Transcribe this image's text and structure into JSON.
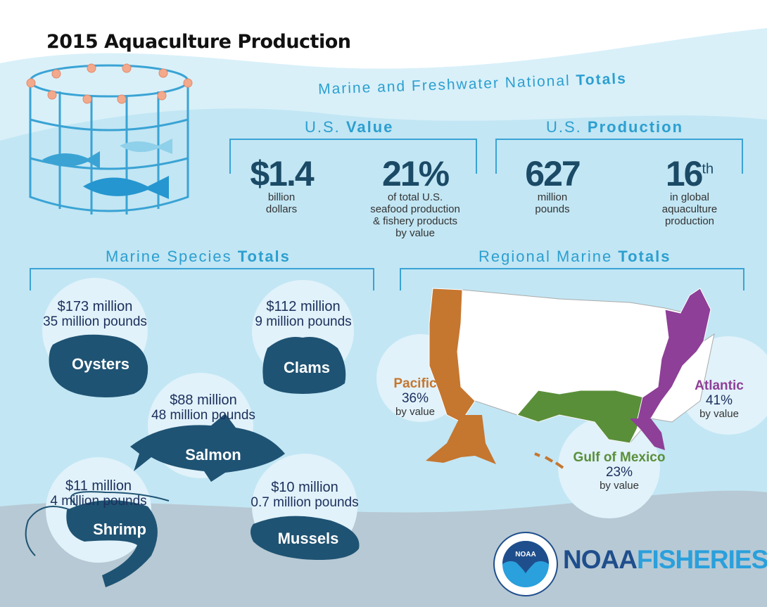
{
  "title": "2015 Aquaculture Production",
  "national": {
    "heading_plain": "Marine and Freshwater National ",
    "heading_bold": "Totals"
  },
  "value": {
    "heading_plain": "U.S. ",
    "heading_bold": "Value",
    "stat1": {
      "big": "$1.4",
      "line1": "billion",
      "line2": "dollars"
    },
    "stat2": {
      "big": "21%",
      "line1": "of total U.S.",
      "line2": "seafood production",
      "line3": "& fishery products",
      "line4": "by value"
    }
  },
  "production": {
    "heading_plain": "U.S. ",
    "heading_bold": "Production",
    "stat1": {
      "big": "627",
      "line1": "million",
      "line2": "pounds"
    },
    "stat2": {
      "big": "16",
      "sup": "th",
      "line1": "in global",
      "line2": "aquaculture",
      "line3": "production"
    }
  },
  "species": {
    "heading_plain": "Marine Species ",
    "heading_bold": "Totals",
    "items": [
      {
        "name": "Oysters",
        "value": "$173 million",
        "pounds": "35 million pounds"
      },
      {
        "name": "Clams",
        "value": "$112 million",
        "pounds": "9 million pounds"
      },
      {
        "name": "Salmon",
        "value": "$88 million",
        "pounds": "48 million pounds"
      },
      {
        "name": "Shrimp",
        "value": "$11 million",
        "pounds": "4 million pounds"
      },
      {
        "name": "Mussels",
        "value": "$10 million",
        "pounds": "0.7 million pounds"
      }
    ]
  },
  "regional": {
    "heading_plain": "Regional Marine ",
    "heading_bold": "Totals",
    "items": [
      {
        "name": "Pacific",
        "percent": "36%",
        "note": "by value",
        "color": "#c5762f"
      },
      {
        "name": "Atlantic",
        "percent": "41%",
        "note": "by value",
        "color": "#8e3f97"
      },
      {
        "name": "Gulf of Mexico",
        "percent": "23%",
        "note": "by value",
        "color": "#5a8f3a"
      }
    ]
  },
  "logo": {
    "seal": "NOAA",
    "word1": "NOAA",
    "word2": "FISHERIES",
    "seal_ring": "NATIONAL OCEANIC AND ATMOSPHERIC ADMINISTRATION · U.S. DEPARTMENT OF COMMERCE"
  }
}
